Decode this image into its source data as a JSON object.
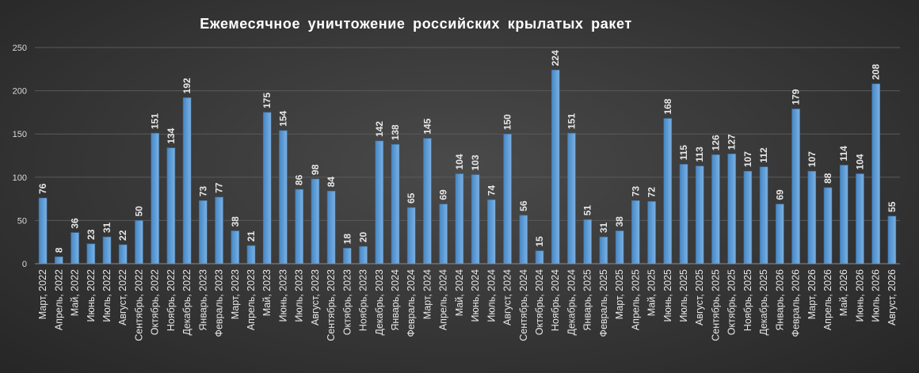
{
  "chart_data": {
    "type": "bar",
    "title": "Ежемесячное уничтожение российских крылатых ракет",
    "xlabel": "",
    "ylabel": "",
    "ylim": [
      0,
      250
    ],
    "yticks": [
      0,
      50,
      100,
      150,
      200,
      250
    ],
    "grid": true,
    "bar_color": "#5b9bd5",
    "categories": [
      "Март, 2022",
      "Апрель, 2022",
      "Май, 2022",
      "Июнь, 2022",
      "Июль, 2022",
      "Август, 2022",
      "Сентябрь, 2022",
      "Октябрь, 2022",
      "Ноябрь, 2022",
      "Декабрь, 2022",
      "Январь, 2023",
      "Февраль, 2023",
      "Март, 2023",
      "Апрель, 2023",
      "Май, 2023",
      "Июнь, 2023",
      "Июль, 2023",
      "Август, 2023",
      "Сентябрь, 2023",
      "Октябрь, 2023",
      "Ноябрь, 2023",
      "Декабрь, 2023",
      "Январь, 2024",
      "Февраль, 2024",
      "Март, 2024",
      "Апрель, 2024",
      "Май, 2024",
      "Июнь, 2024",
      "Июль, 2024",
      "Август, 2024",
      "Сентябрь, 2024",
      "Октябрь, 2024",
      "Ноябрь, 2024",
      "Декабрь, 2024",
      "Январь, 2025",
      "Февраль, 2025",
      "Март, 2025",
      "Апрель, 2025",
      "Май, 2025",
      "Июнь, 2025",
      "Июль, 2025",
      "Август, 2025",
      "Сентябрь, 2025",
      "Октябрь, 2025",
      "Ноябрь, 2025",
      "Декабрь, 2025",
      "Январь, 2026",
      "Февраль, 2026",
      "Март, 2026",
      "Апрель, 2026",
      "Май, 2026",
      "Июнь, 2026",
      "Июль, 2026",
      "Август, 2026"
    ],
    "values": [
      76,
      8,
      36,
      23,
      31,
      22,
      50,
      151,
      134,
      192,
      73,
      77,
      38,
      21,
      175,
      154,
      86,
      98,
      84,
      18,
      20,
      142,
      138,
      65,
      145,
      69,
      104,
      103,
      74,
      150,
      56,
      15,
      224,
      151,
      51,
      31,
      38,
      73,
      72,
      168,
      115,
      113,
      126,
      127,
      107,
      112,
      69,
      179,
      107,
      88,
      114,
      104,
      208,
      55
    ]
  }
}
